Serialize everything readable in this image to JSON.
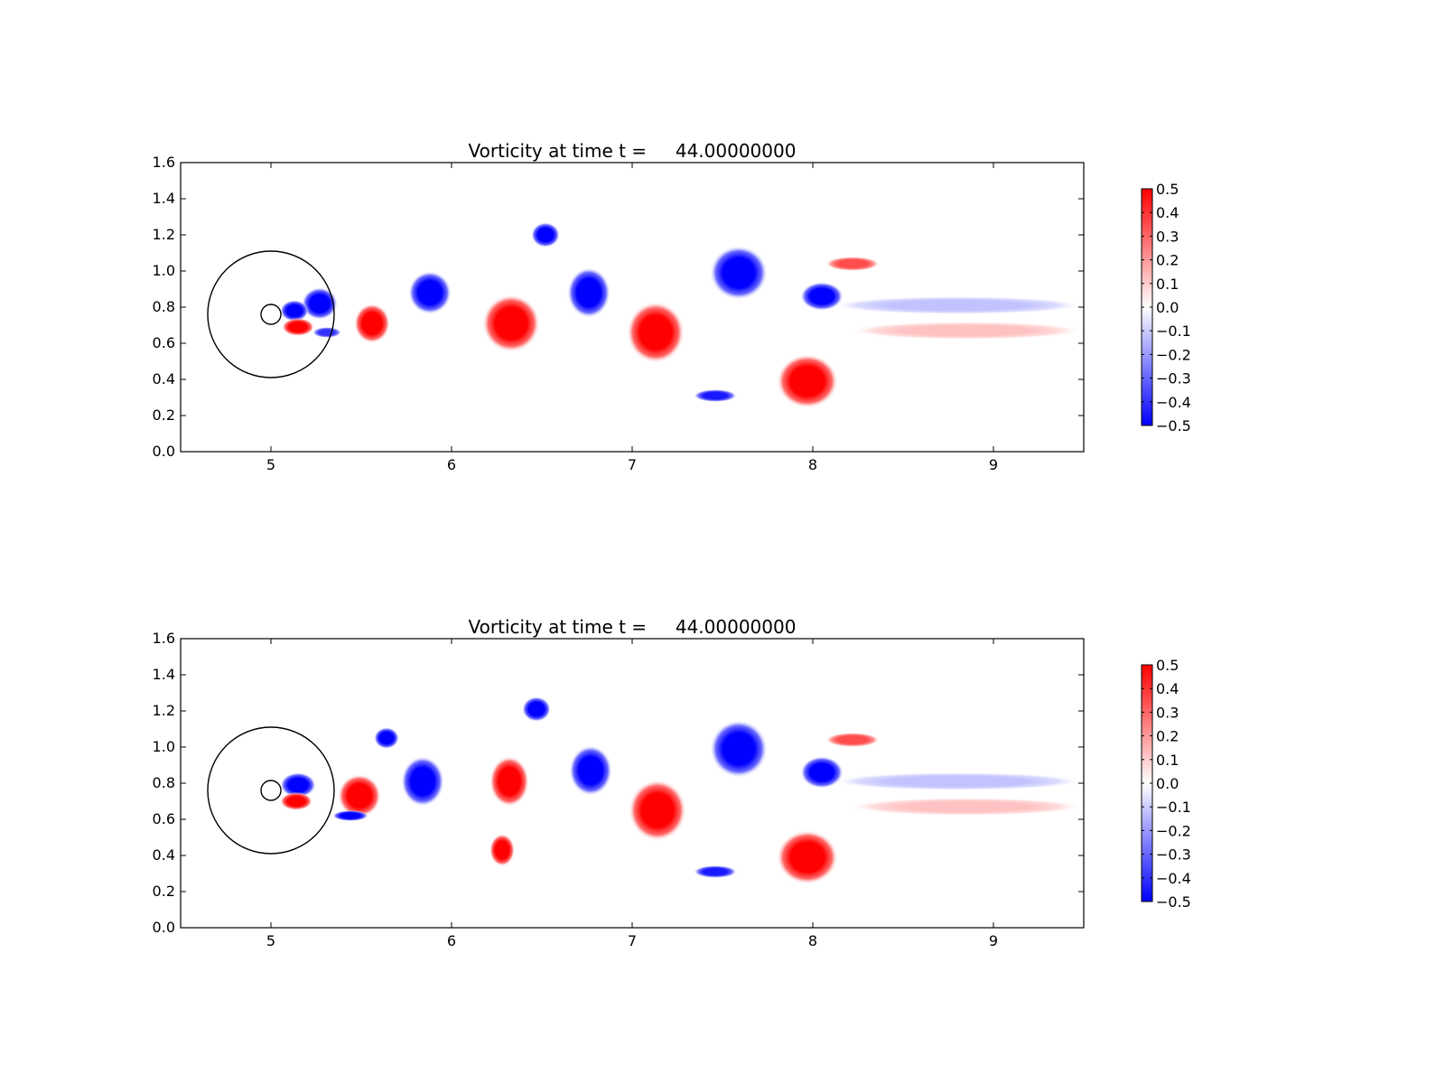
{
  "chart_data": [
    {
      "type": "heatmap",
      "title": "Vorticity at time t =     44.00000000",
      "xlabel": "",
      "ylabel": "",
      "xlim": [
        4.5,
        9.5
      ],
      "ylim": [
        0.0,
        1.6
      ],
      "xticks": [
        5,
        6,
        7,
        8,
        9
      ],
      "yticks": [
        0.0,
        0.2,
        0.4,
        0.6,
        0.8,
        1.0,
        1.2,
        1.4,
        1.6
      ],
      "grid": false,
      "colormap": "bwr",
      "colors": {
        "negative": "#0000ff",
        "zero": "#ffffff",
        "positive": "#ff0000"
      },
      "colorbar": {
        "min": -0.5,
        "max": 0.5,
        "ticks": [
          -0.5,
          -0.4,
          -0.3,
          -0.2,
          -0.1,
          0.0,
          0.1,
          0.2,
          0.3,
          0.4,
          0.5
        ],
        "tick_labels": [
          "−0.5",
          "−0.4",
          "−0.3",
          "−0.2",
          "−0.1",
          "0.0",
          "0.1",
          "0.2",
          "0.3",
          "0.4",
          "0.5"
        ]
      },
      "circles": [
        {
          "cx": 5.0,
          "cy": 0.76,
          "r": 0.35
        },
        {
          "cx": 5.0,
          "cy": 0.76,
          "r": 0.055
        }
      ],
      "vortices": [
        {
          "x": 5.27,
          "y": 0.82,
          "rx": 0.1,
          "ry": 0.09,
          "w": -0.5
        },
        {
          "x": 5.13,
          "y": 0.78,
          "rx": 0.08,
          "ry": 0.06,
          "w": -0.5
        },
        {
          "x": 5.15,
          "y": 0.69,
          "rx": 0.09,
          "ry": 0.05,
          "w": 0.5
        },
        {
          "x": 5.31,
          "y": 0.66,
          "rx": 0.08,
          "ry": 0.03,
          "w": -0.4
        },
        {
          "x": 5.56,
          "y": 0.71,
          "rx": 0.1,
          "ry": 0.11,
          "w": 0.5
        },
        {
          "x": 5.88,
          "y": 0.88,
          "rx": 0.12,
          "ry": 0.12,
          "w": -0.5
        },
        {
          "x": 6.33,
          "y": 0.71,
          "rx": 0.16,
          "ry": 0.16,
          "w": 0.5
        },
        {
          "x": 6.52,
          "y": 1.2,
          "rx": 0.08,
          "ry": 0.07,
          "w": -0.5
        },
        {
          "x": 6.76,
          "y": 0.88,
          "rx": 0.12,
          "ry": 0.14,
          "w": -0.5
        },
        {
          "x": 7.13,
          "y": 0.66,
          "rx": 0.16,
          "ry": 0.17,
          "w": 0.5
        },
        {
          "x": 7.59,
          "y": 0.99,
          "rx": 0.16,
          "ry": 0.15,
          "w": -0.5
        },
        {
          "x": 8.05,
          "y": 0.86,
          "rx": 0.12,
          "ry": 0.08,
          "w": -0.5
        },
        {
          "x": 7.97,
          "y": 0.39,
          "rx": 0.17,
          "ry": 0.15,
          "w": 0.5
        },
        {
          "x": 8.22,
          "y": 1.04,
          "rx": 0.15,
          "ry": 0.04,
          "w": 0.35
        },
        {
          "x": 7.46,
          "y": 0.31,
          "rx": 0.12,
          "ry": 0.035,
          "w": -0.45
        },
        {
          "x": 8.8,
          "y": 0.81,
          "rx": 0.7,
          "ry": 0.05,
          "w": -0.12
        },
        {
          "x": 8.85,
          "y": 0.67,
          "rx": 0.65,
          "ry": 0.05,
          "w": 0.12
        }
      ]
    },
    {
      "type": "heatmap",
      "title": "Vorticity at time t =     44.00000000",
      "xlabel": "",
      "ylabel": "",
      "xlim": [
        4.5,
        9.5
      ],
      "ylim": [
        0.0,
        1.6
      ],
      "xticks": [
        5,
        6,
        7,
        8,
        9
      ],
      "yticks": [
        0.0,
        0.2,
        0.4,
        0.6,
        0.8,
        1.0,
        1.2,
        1.4,
        1.6
      ],
      "grid": false,
      "colormap": "bwr",
      "colors": {
        "negative": "#0000ff",
        "zero": "#ffffff",
        "positive": "#ff0000"
      },
      "colorbar": {
        "min": -0.5,
        "max": 0.5,
        "ticks": [
          -0.5,
          -0.4,
          -0.3,
          -0.2,
          -0.1,
          0.0,
          0.1,
          0.2,
          0.3,
          0.4,
          0.5
        ],
        "tick_labels": [
          "−0.5",
          "−0.4",
          "−0.3",
          "−0.2",
          "−0.1",
          "0.0",
          "0.1",
          "0.2",
          "0.3",
          "0.4",
          "0.5"
        ]
      },
      "circles": [
        {
          "cx": 5.0,
          "cy": 0.76,
          "r": 0.35
        },
        {
          "cx": 5.0,
          "cy": 0.76,
          "r": 0.055
        }
      ],
      "vortices": [
        {
          "x": 5.15,
          "y": 0.79,
          "rx": 0.1,
          "ry": 0.07,
          "w": -0.5
        },
        {
          "x": 5.14,
          "y": 0.7,
          "rx": 0.09,
          "ry": 0.05,
          "w": 0.5
        },
        {
          "x": 5.49,
          "y": 0.73,
          "rx": 0.12,
          "ry": 0.12,
          "w": 0.5
        },
        {
          "x": 5.44,
          "y": 0.62,
          "rx": 0.1,
          "ry": 0.03,
          "w": -0.5
        },
        {
          "x": 5.64,
          "y": 1.05,
          "rx": 0.07,
          "ry": 0.06,
          "w": -0.5
        },
        {
          "x": 5.84,
          "y": 0.81,
          "rx": 0.12,
          "ry": 0.14,
          "w": -0.5
        },
        {
          "x": 6.32,
          "y": 0.81,
          "rx": 0.11,
          "ry": 0.14,
          "w": 0.5
        },
        {
          "x": 6.28,
          "y": 0.43,
          "rx": 0.07,
          "ry": 0.09,
          "w": 0.5
        },
        {
          "x": 6.47,
          "y": 1.21,
          "rx": 0.08,
          "ry": 0.07,
          "w": -0.5
        },
        {
          "x": 6.77,
          "y": 0.87,
          "rx": 0.12,
          "ry": 0.14,
          "w": -0.5
        },
        {
          "x": 7.14,
          "y": 0.65,
          "rx": 0.16,
          "ry": 0.17,
          "w": 0.5
        },
        {
          "x": 7.59,
          "y": 0.99,
          "rx": 0.16,
          "ry": 0.16,
          "w": -0.5
        },
        {
          "x": 8.05,
          "y": 0.86,
          "rx": 0.12,
          "ry": 0.09,
          "w": -0.5
        },
        {
          "x": 7.97,
          "y": 0.39,
          "rx": 0.17,
          "ry": 0.15,
          "w": 0.5
        },
        {
          "x": 8.22,
          "y": 1.04,
          "rx": 0.15,
          "ry": 0.04,
          "w": 0.35
        },
        {
          "x": 7.46,
          "y": 0.31,
          "rx": 0.12,
          "ry": 0.035,
          "w": -0.45
        },
        {
          "x": 8.8,
          "y": 0.81,
          "rx": 0.7,
          "ry": 0.05,
          "w": -0.12
        },
        {
          "x": 8.85,
          "y": 0.67,
          "rx": 0.65,
          "ry": 0.05,
          "w": 0.12
        }
      ]
    }
  ]
}
